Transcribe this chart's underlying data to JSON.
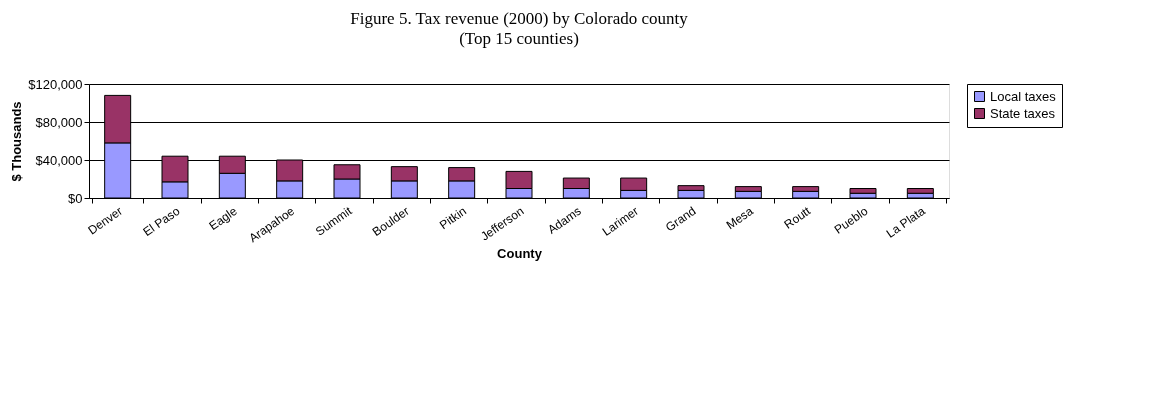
{
  "chart_data": {
    "type": "bar",
    "title": "Figure 5. Tax revenue (2000) by Colorado county",
    "subtitle": "(Top 15 counties)",
    "xlabel": "County",
    "ylabel": "$ Thousands",
    "categories": [
      "Denver",
      "El Paso",
      "Eagle",
      "Arapahoe",
      "Summit",
      "Boulder",
      "Pitkin",
      "Jefferson",
      "Adams",
      "Larimer",
      "Grand",
      "Mesa",
      "Routt",
      "Pueblo",
      "La Plata"
    ],
    "stacked": true,
    "series": [
      {
        "name": "Local taxes",
        "color": "#9999ff",
        "values": [
          58000,
          17000,
          26000,
          18000,
          20000,
          18000,
          18000,
          10000,
          10000,
          8000,
          8000,
          7000,
          7000,
          5000,
          5000
        ]
      },
      {
        "name": "State taxes",
        "color": "#993366",
        "values": [
          50000,
          27000,
          18000,
          22000,
          15000,
          15000,
          14000,
          18000,
          11000,
          13000,
          5000,
          5000,
          5000,
          5000,
          5000
        ]
      }
    ],
    "ylim": [
      0,
      120000
    ],
    "yticks": [
      {
        "value": 0,
        "label": "$0"
      },
      {
        "value": 40000,
        "label": "$40,000"
      },
      {
        "value": 80000,
        "label": "$80,000"
      },
      {
        "value": 120000,
        "label": "$120,000"
      }
    ],
    "grid": "y",
    "legend": "right"
  }
}
